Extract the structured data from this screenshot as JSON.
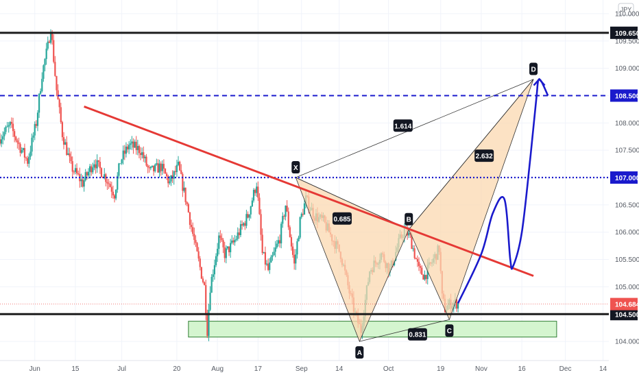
{
  "currency_label": "JPY",
  "colors": {
    "up": "#26a69a",
    "down": "#ef5350",
    "trend": "#e53935",
    "projection": "#1a1acc",
    "pattern_fill": "#fbd8b0",
    "pattern_stroke": "#333333",
    "zone_fill": "#d4f5cf",
    "zone_stroke": "#2e7d32",
    "level_solid": "#1c1c1c",
    "level_dashed": "#1a1acc"
  },
  "chart_data": {
    "type": "candlestick",
    "symbol_currency": "JPY",
    "y_axis": {
      "ticks": [
        104.0,
        104.5,
        105.0,
        105.5,
        106.0,
        106.5,
        107.0,
        107.5,
        108.0,
        108.5,
        109.0,
        109.5,
        110.0
      ],
      "tick_labels": [
        "104.000",
        "",
        "105.000",
        "105.500",
        "106.000",
        "106.500",
        "",
        "107.500",
        "108.000",
        "",
        "109.000",
        "109.500",
        "110.000"
      ],
      "range": [
        103.65,
        110.25
      ]
    },
    "x_axis": {
      "tick_labels": [
        {
          "date": "2020-06-01",
          "label": "Jun"
        },
        {
          "date": "2020-06-15",
          "label": "15"
        },
        {
          "date": "2020-07-01",
          "label": "Jul"
        },
        {
          "date": "2020-07-20",
          "label": "20"
        },
        {
          "date": "2020-08-03",
          "label": "Aug"
        },
        {
          "date": "2020-08-17",
          "label": "17"
        },
        {
          "date": "2020-09-01",
          "label": "Sep"
        },
        {
          "date": "2020-09-14",
          "label": "14"
        },
        {
          "date": "2020-10-01",
          "label": "Oct"
        },
        {
          "date": "2020-10-19",
          "label": "19"
        },
        {
          "date": "2020-11-02",
          "label": "Nov"
        },
        {
          "date": "2020-11-16",
          "label": "16"
        },
        {
          "date": "2020-12-01",
          "label": "Dec"
        },
        {
          "date": "2020-12-14",
          "label": "14"
        }
      ],
      "range": [
        "2020-05-20",
        "2020-12-16"
      ]
    },
    "price_path": [
      [
        "2020-05-20",
        107.7
      ],
      [
        "2020-05-24",
        107.95
      ],
      [
        "2020-05-27",
        107.6
      ],
      [
        "2020-05-30",
        107.3
      ],
      [
        "2020-06-02",
        108.0
      ],
      [
        "2020-06-04",
        108.9
      ],
      [
        "2020-06-06",
        109.4
      ],
      [
        "2020-06-07",
        109.75
      ],
      [
        "2020-06-09",
        108.6
      ],
      [
        "2020-06-11",
        107.8
      ],
      [
        "2020-06-14",
        107.2
      ],
      [
        "2020-06-18",
        106.9
      ],
      [
        "2020-06-22",
        107.3
      ],
      [
        "2020-06-26",
        107.0
      ],
      [
        "2020-06-29",
        106.7
      ],
      [
        "2020-07-01",
        107.3
      ],
      [
        "2020-07-04",
        107.6
      ],
      [
        "2020-07-08",
        107.5
      ],
      [
        "2020-07-11",
        107.1
      ],
      [
        "2020-07-15",
        107.2
      ],
      [
        "2020-07-18",
        106.9
      ],
      [
        "2020-07-21",
        107.2
      ],
      [
        "2020-07-24",
        106.5
      ],
      [
        "2020-07-27",
        105.7
      ],
      [
        "2020-07-30",
        105.0
      ],
      [
        "2020-07-31",
        104.2
      ],
      [
        "2020-08-01",
        105.0
      ],
      [
        "2020-08-04",
        105.9
      ],
      [
        "2020-08-06",
        105.6
      ],
      [
        "2020-08-09",
        105.8
      ],
      [
        "2020-08-11",
        106.0
      ],
      [
        "2020-08-14",
        106.3
      ],
      [
        "2020-08-17",
        106.9
      ],
      [
        "2020-08-19",
        105.6
      ],
      [
        "2020-08-21",
        105.3
      ],
      [
        "2020-08-25",
        105.9
      ],
      [
        "2020-08-27",
        106.5
      ],
      [
        "2020-08-30",
        105.4
      ],
      [
        "2020-09-01",
        106.2
      ],
      [
        "2020-09-03",
        106.6
      ],
      [
        "2020-09-06",
        106.3
      ],
      [
        "2020-09-09",
        106.2
      ],
      [
        "2020-09-11",
        106.0
      ],
      [
        "2020-09-15",
        105.6
      ],
      [
        "2020-09-18",
        104.9
      ],
      [
        "2020-09-20",
        104.5
      ],
      [
        "2020-09-22",
        104.2
      ],
      [
        "2020-09-25",
        105.3
      ],
      [
        "2020-09-29",
        105.6
      ],
      [
        "2020-10-02",
        105.3
      ],
      [
        "2020-10-05",
        105.8
      ],
      [
        "2020-10-07",
        106.05
      ],
      [
        "2020-10-09",
        105.9
      ],
      [
        "2020-10-12",
        105.3
      ],
      [
        "2020-10-14",
        105.2
      ],
      [
        "2020-10-16",
        105.4
      ],
      [
        "2020-10-19",
        105.7
      ],
      [
        "2020-10-20",
        104.8
      ],
      [
        "2020-10-21",
        104.6
      ],
      [
        "2020-10-23",
        104.7
      ],
      [
        "2020-10-25",
        104.7
      ]
    ],
    "levels": [
      {
        "label": "109.650",
        "value": 109.65,
        "style": "solid"
      },
      {
        "label": "108.500",
        "value": 108.5,
        "style": "dashed"
      },
      {
        "label": "107.000",
        "value": 107.0,
        "style": "dotted"
      },
      {
        "label": "104.500",
        "value": 104.5,
        "style": "solid"
      }
    ],
    "current_price": {
      "label": "104.684",
      "value": 104.684
    },
    "support_zone": {
      "from": "2020-07-24",
      "to": "2020-11-28",
      "low": 104.08,
      "high": 104.37
    },
    "trendline": {
      "points": [
        [
          "2020-06-18",
          108.3
        ],
        [
          "2020-11-20",
          105.2
        ]
      ]
    },
    "harmonic_pattern": {
      "name": "",
      "points": [
        {
          "label": "X",
          "date": "2020-08-30",
          "price": 107.0
        },
        {
          "label": "A",
          "date": "2020-09-21",
          "price": 104.0
        },
        {
          "label": "B",
          "date": "2020-10-08",
          "price": 106.05
        },
        {
          "label": "C",
          "date": "2020-10-22",
          "price": 104.4
        },
        {
          "label": "D",
          "date": "2020-11-20",
          "price": 108.8
        }
      ],
      "ratios": [
        {
          "label": "1.614",
          "date": "2020-10-06",
          "price": 107.95
        },
        {
          "label": "0.685",
          "date": "2020-09-15",
          "price": 106.25
        },
        {
          "label": "2.632",
          "date": "2020-11-03",
          "price": 107.4
        },
        {
          "label": "0.831",
          "date": "2020-10-11",
          "price": 104.13
        }
      ]
    },
    "projection": {
      "points": [
        [
          "2020-10-25",
          104.7
        ],
        [
          "2020-11-02",
          105.6
        ],
        [
          "2020-11-06",
          106.35
        ],
        [
          "2020-11-10",
          106.6
        ],
        [
          "2020-11-12",
          105.5
        ],
        [
          "2020-11-13",
          105.38
        ],
        [
          "2020-11-16",
          106.0
        ],
        [
          "2020-11-19",
          107.4
        ],
        [
          "2020-11-21",
          108.45
        ],
        [
          "2020-11-22",
          108.8
        ],
        [
          "2020-11-25",
          108.5
        ]
      ]
    }
  }
}
